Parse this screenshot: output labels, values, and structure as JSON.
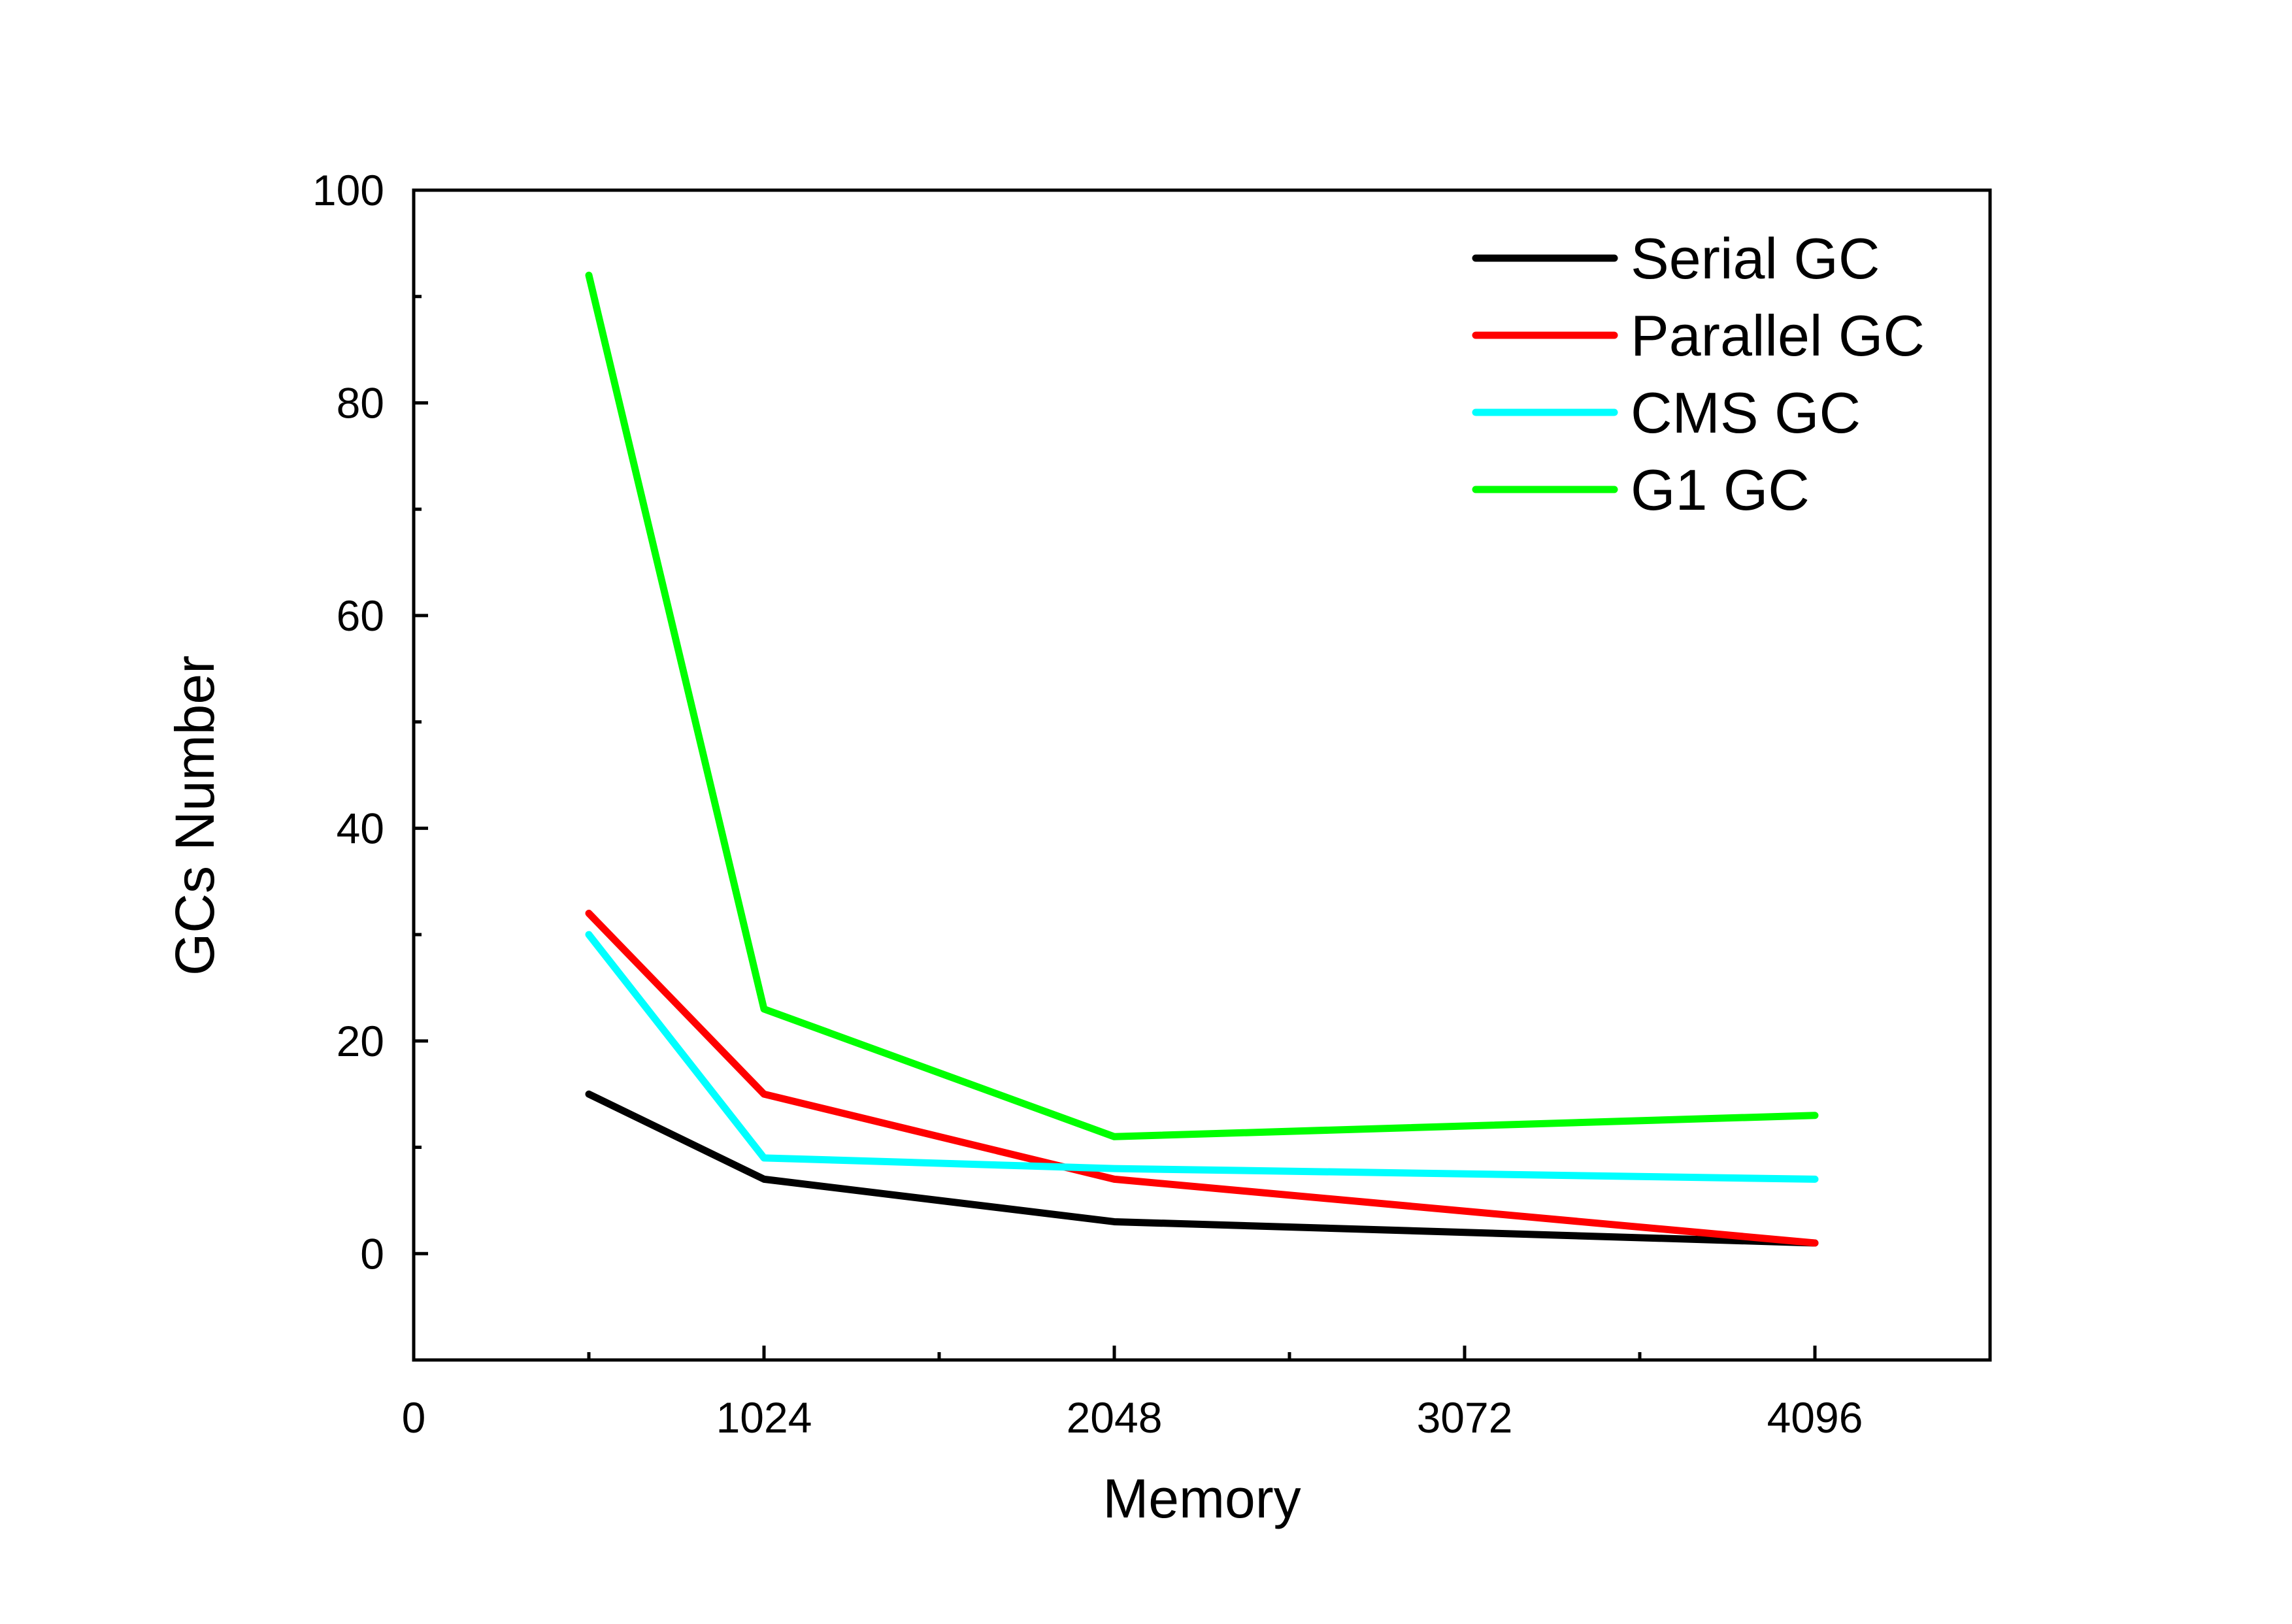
{
  "chart_data": {
    "type": "line",
    "title": "",
    "xlabel": "Memory",
    "ylabel": "GCs Number",
    "xlim": [
      0,
      4608
    ],
    "ylim": [
      -10,
      100
    ],
    "xticks": [
      0,
      1024,
      2048,
      3072,
      4096
    ],
    "yticks": [
      0,
      20,
      40,
      60,
      80,
      100
    ],
    "x": [
      512,
      1024,
      2048,
      4096
    ],
    "series": [
      {
        "name": "Serial GC",
        "color": "#000000",
        "values": [
          15,
          7,
          3,
          1
        ]
      },
      {
        "name": "Parallel GC",
        "color": "#ff0000",
        "values": [
          32,
          15,
          7,
          1
        ]
      },
      {
        "name": "CMS GC",
        "color": "#00ffff",
        "values": [
          30,
          9,
          8,
          7
        ]
      },
      {
        "name": "G1 GC",
        "color": "#00ff00",
        "values": [
          92,
          23,
          11,
          13
        ]
      }
    ],
    "legend": "top-right",
    "grid": false
  }
}
